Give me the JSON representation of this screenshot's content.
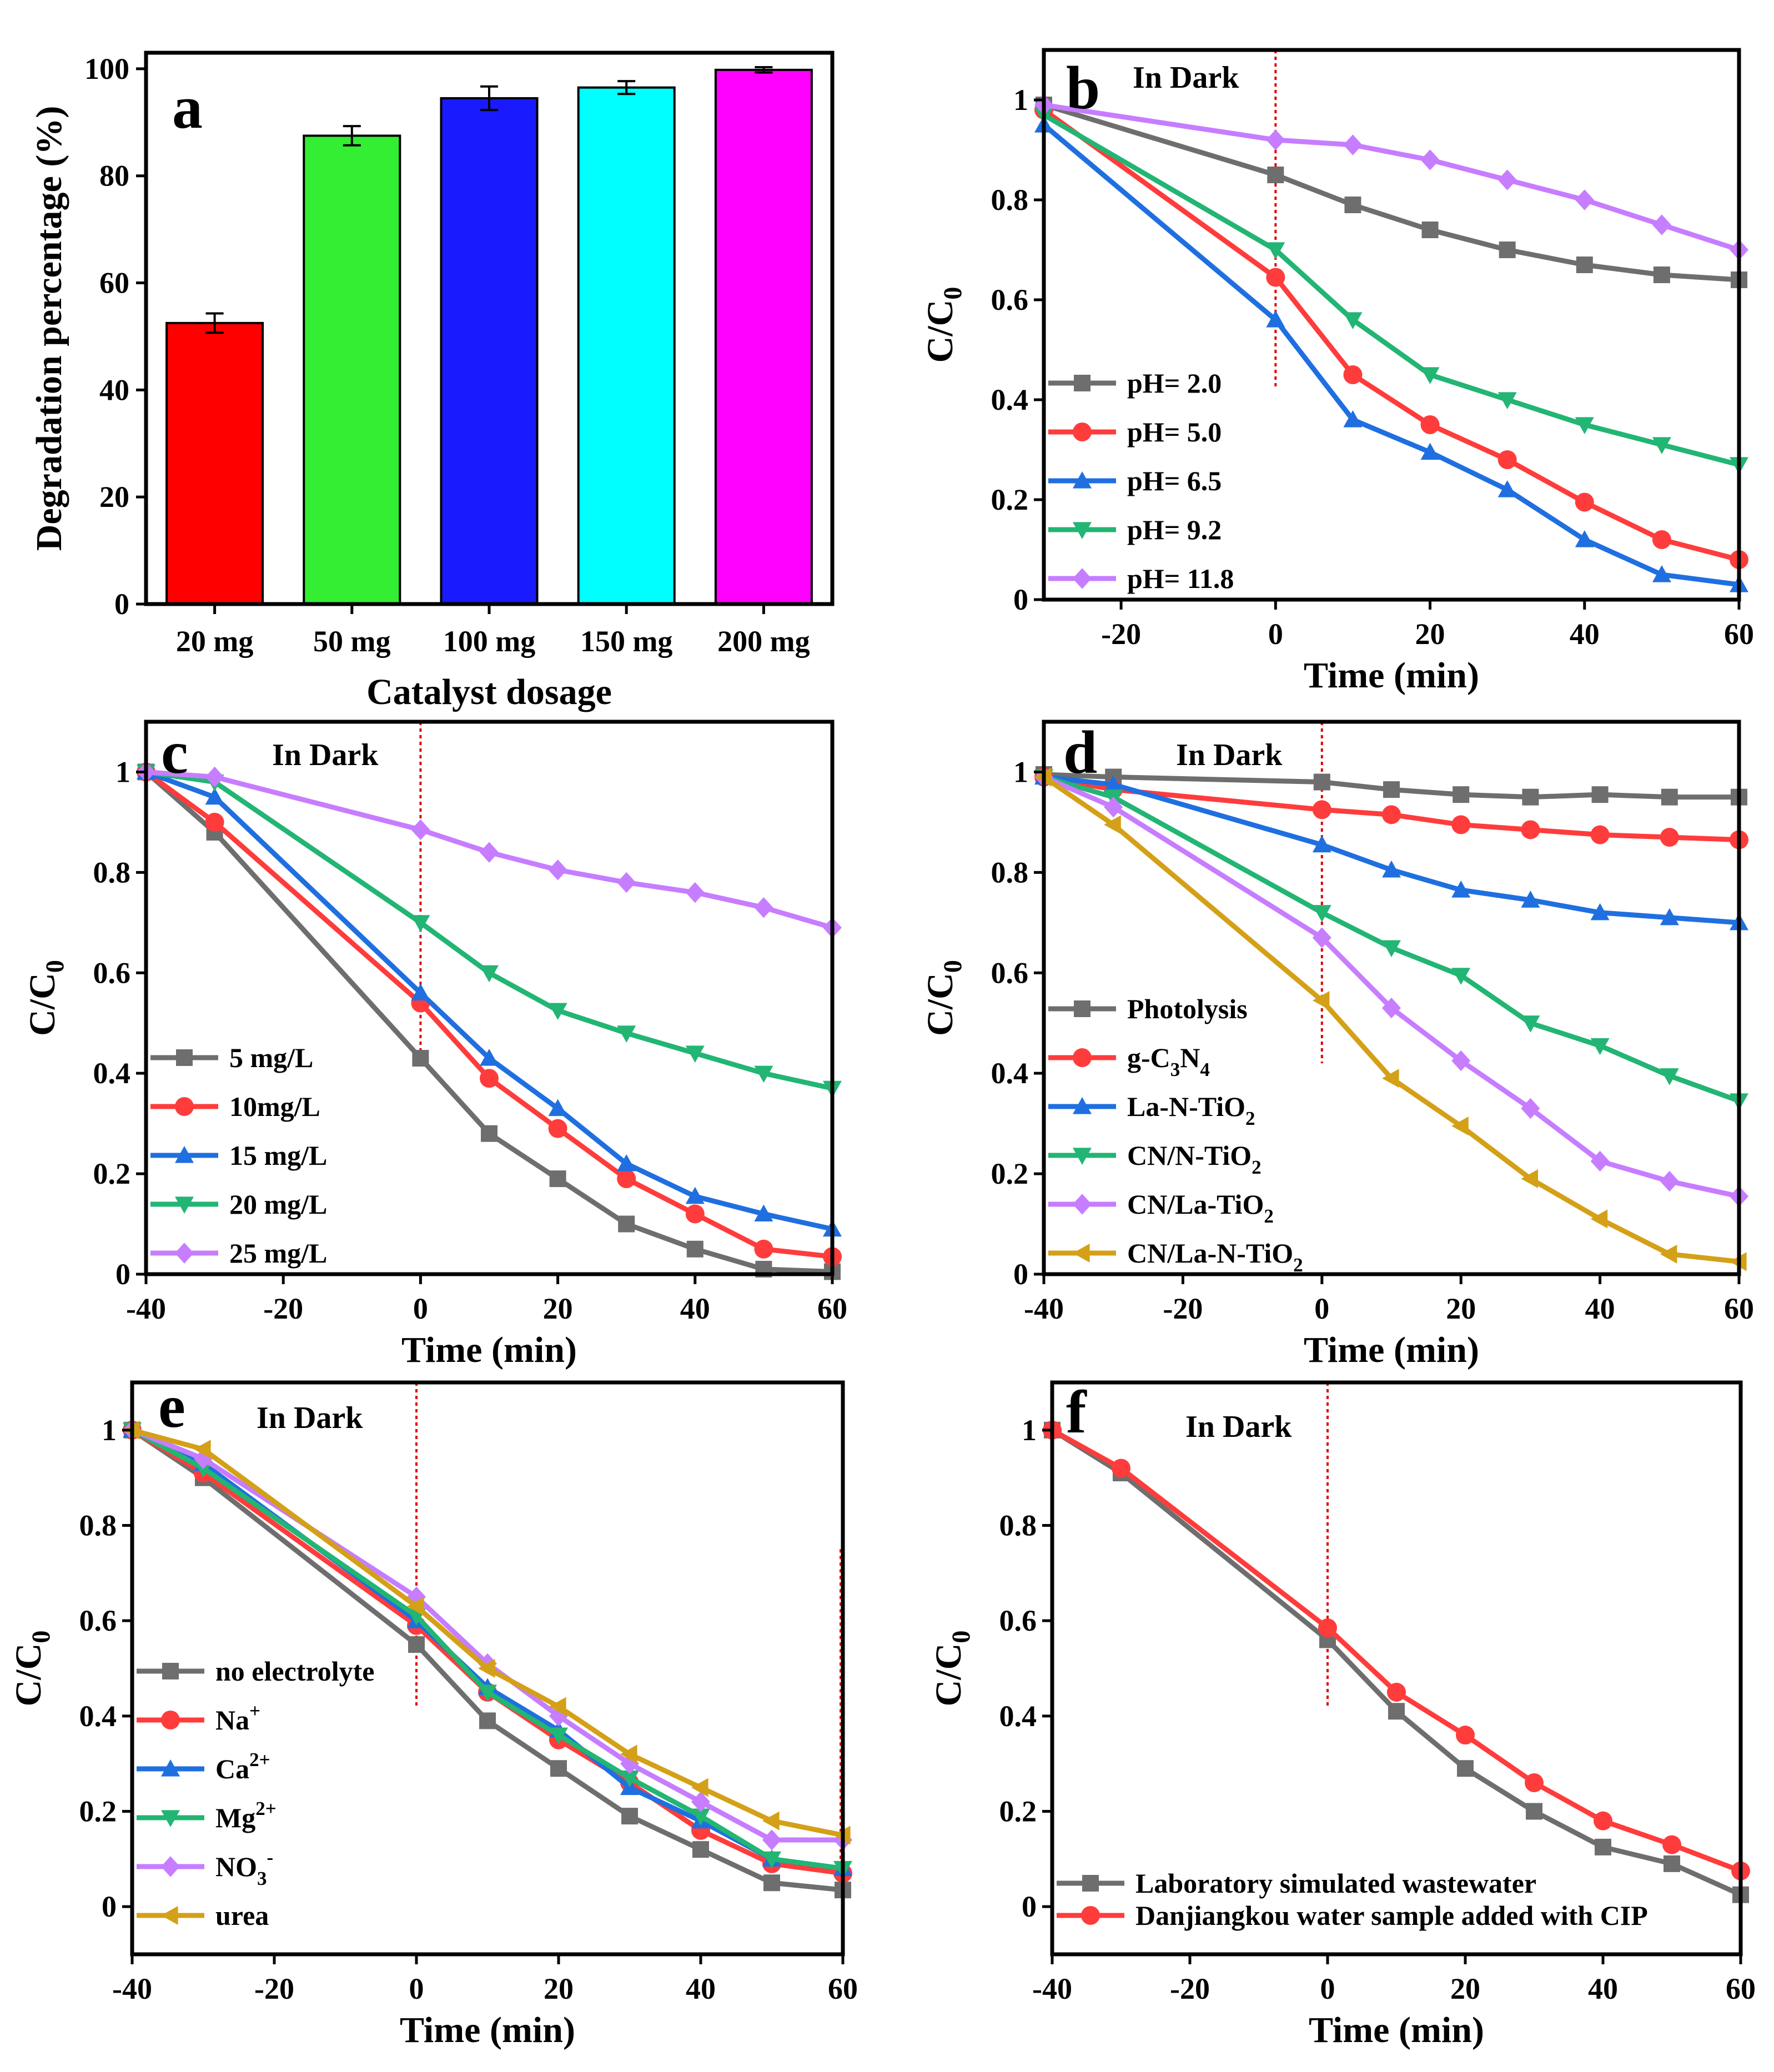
{
  "chart_data": [
    {
      "panel": "a",
      "type": "bar",
      "categories": [
        "20 mg",
        "50 mg",
        "100 mg",
        "150 mg",
        "200 mg"
      ],
      "values": [
        52.5,
        87.5,
        94.5,
        96.5,
        99.8
      ],
      "errors": [
        1.8,
        1.8,
        2.2,
        1.2,
        0.5
      ],
      "colors": [
        "#ff0000",
        "#33ee33",
        "#1a1aff",
        "#00ffff",
        "#ff00ff"
      ],
      "xlabel": "Catalyst dosage",
      "ylabel": "Degradation percentage (%)",
      "ylim": [
        0,
        103
      ],
      "yticks": [
        0,
        20,
        40,
        60,
        80,
        100
      ]
    },
    {
      "panel": "b",
      "type": "line",
      "dark_label": "In Dark",
      "xlabel": "Time (min)",
      "ylabel": "C/C0",
      "xlim": [
        -30,
        60
      ],
      "ylim": [
        0,
        1.1
      ],
      "xticks": [
        -20,
        0,
        20,
        40,
        60
      ],
      "yticks": [
        0.0,
        0.2,
        0.4,
        0.6,
        0.8,
        1.0
      ],
      "dark_line_x": 0,
      "x": [
        -30,
        0,
        10,
        20,
        30,
        40,
        50,
        60
      ],
      "legend_position": "bottom-left",
      "series": [
        {
          "name": "pH= 2.0",
          "marker": "square",
          "color": "#6e6e6e",
          "values": [
            0.99,
            0.85,
            0.79,
            0.74,
            0.7,
            0.67,
            0.65,
            0.64
          ]
        },
        {
          "name": "pH= 5.0",
          "marker": "circle",
          "color": "#ff3c3c",
          "values": [
            0.98,
            0.645,
            0.45,
            0.35,
            0.28,
            0.195,
            0.12,
            0.08
          ]
        },
        {
          "name": "pH= 6.5",
          "marker": "triangle-up",
          "color": "#1f6fe0",
          "values": [
            0.95,
            0.56,
            0.36,
            0.295,
            0.22,
            0.12,
            0.05,
            0.03
          ]
        },
        {
          "name": "pH= 9.2",
          "marker": "triangle-down",
          "color": "#22b573",
          "values": [
            0.97,
            0.7,
            0.56,
            0.45,
            0.4,
            0.35,
            0.31,
            0.27
          ]
        },
        {
          "name": "pH= 11.8",
          "marker": "diamond",
          "color": "#c77dff",
          "values": [
            0.99,
            0.92,
            0.91,
            0.88,
            0.84,
            0.8,
            0.75,
            0.7
          ]
        }
      ]
    },
    {
      "panel": "c",
      "type": "line",
      "dark_label": "In Dark",
      "xlabel": "Time (min)",
      "ylabel": "C/C0",
      "xlim": [
        -40,
        60
      ],
      "ylim": [
        0,
        1.1
      ],
      "xticks": [
        -40,
        -20,
        0,
        20,
        40,
        60
      ],
      "yticks": [
        0.0,
        0.2,
        0.4,
        0.6,
        0.8,
        1.0
      ],
      "dark_line_x": 0,
      "x": [
        -40,
        -30,
        0,
        10,
        20,
        30,
        40,
        50,
        60
      ],
      "legend_position": "bottom-left",
      "series": [
        {
          "name": "5 mg/L",
          "marker": "square",
          "color": "#6e6e6e",
          "values": [
            1.0,
            0.88,
            0.43,
            0.28,
            0.19,
            0.1,
            0.05,
            0.01,
            0.005
          ]
        },
        {
          "name": "10mg/L",
          "marker": "circle",
          "color": "#ff3c3c",
          "values": [
            1.0,
            0.9,
            0.54,
            0.39,
            0.29,
            0.19,
            0.12,
            0.05,
            0.035
          ]
        },
        {
          "name": "15 mg/L",
          "marker": "triangle-up",
          "color": "#1f6fe0",
          "values": [
            1.0,
            0.95,
            0.56,
            0.43,
            0.33,
            0.22,
            0.155,
            0.12,
            0.09
          ]
        },
        {
          "name": "20 mg/L",
          "marker": "triangle-down",
          "color": "#22b573",
          "values": [
            1.0,
            0.98,
            0.7,
            0.6,
            0.525,
            0.48,
            0.44,
            0.4,
            0.37
          ]
        },
        {
          "name": "25 mg/L",
          "marker": "diamond",
          "color": "#c77dff",
          "values": [
            1.0,
            0.99,
            0.885,
            0.84,
            0.805,
            0.78,
            0.76,
            0.73,
            0.69
          ]
        }
      ]
    },
    {
      "panel": "d",
      "type": "line",
      "dark_label": "In Dark",
      "xlabel": "Time (min)",
      "ylabel": "C/C0",
      "xlim": [
        -40,
        60
      ],
      "ylim": [
        0,
        1.1
      ],
      "xticks": [
        -40,
        -20,
        0,
        20,
        40,
        60
      ],
      "yticks": [
        0.0,
        0.2,
        0.4,
        0.6,
        0.8,
        1.0
      ],
      "dark_line_x": 0,
      "x": [
        -40,
        -30,
        0,
        10,
        20,
        30,
        40,
        50,
        60
      ],
      "legend_position": "bottom-left",
      "series": [
        {
          "name": "Photolysis",
          "marker": "square",
          "color": "#6e6e6e",
          "values": [
            0.995,
            0.99,
            0.98,
            0.965,
            0.955,
            0.95,
            0.955,
            0.95,
            0.95
          ]
        },
        {
          "name": "g-C3N4",
          "marker": "circle",
          "color": "#ff3c3c",
          "values": [
            0.99,
            0.965,
            0.925,
            0.915,
            0.895,
            0.885,
            0.875,
            0.87,
            0.865
          ]
        },
        {
          "name": "La-N-TiO2",
          "marker": "triangle-up",
          "color": "#1f6fe0",
          "values": [
            0.99,
            0.975,
            0.855,
            0.805,
            0.765,
            0.745,
            0.72,
            0.71,
            0.7
          ]
        },
        {
          "name": "CN/N-TiO2",
          "marker": "triangle-down",
          "color": "#22b573",
          "values": [
            0.99,
            0.95,
            0.72,
            0.65,
            0.595,
            0.5,
            0.455,
            0.395,
            0.345
          ]
        },
        {
          "name": "CN/La-TiO2",
          "marker": "diamond",
          "color": "#c77dff",
          "values": [
            0.99,
            0.93,
            0.67,
            0.53,
            0.425,
            0.33,
            0.225,
            0.185,
            0.155
          ]
        },
        {
          "name": "CN/La-N-TiO2",
          "marker": "triangle-left",
          "color": "#d4a017",
          "values": [
            0.99,
            0.895,
            0.545,
            0.39,
            0.295,
            0.19,
            0.11,
            0.04,
            0.025
          ]
        }
      ]
    },
    {
      "panel": "e",
      "type": "line",
      "dark_label": "In Dark",
      "xlabel": "Time (min)",
      "ylabel": "C/C0",
      "xlim": [
        -40,
        60
      ],
      "ylim": [
        -0.1,
        1.1
      ],
      "xticks": [
        -40,
        -20,
        0,
        20,
        40,
        60
      ],
      "yticks": [
        0.0,
        0.2,
        0.4,
        0.6,
        0.8,
        1.0
      ],
      "dark_line_x": 0,
      "extra_line_x": 60,
      "x": [
        -40,
        -30,
        0,
        10,
        20,
        30,
        40,
        50,
        60
      ],
      "legend_position": "bottom-left",
      "series": [
        {
          "name": "no electrolyte",
          "marker": "square",
          "color": "#6e6e6e",
          "values": [
            1.0,
            0.9,
            0.55,
            0.39,
            0.29,
            0.19,
            0.12,
            0.05,
            0.035
          ]
        },
        {
          "name": "Na+",
          "marker": "circle",
          "color": "#ff3c3c",
          "values": [
            1.0,
            0.91,
            0.59,
            0.45,
            0.35,
            0.26,
            0.16,
            0.09,
            0.07
          ]
        },
        {
          "name": "Ca2+",
          "marker": "triangle-up",
          "color": "#1f6fe0",
          "values": [
            1.0,
            0.93,
            0.6,
            0.46,
            0.37,
            0.25,
            0.18,
            0.1,
            0.08
          ]
        },
        {
          "name": "Mg2+",
          "marker": "triangle-down",
          "color": "#22b573",
          "values": [
            1.0,
            0.92,
            0.61,
            0.45,
            0.36,
            0.27,
            0.19,
            0.1,
            0.08
          ]
        },
        {
          "name": "NO3-",
          "marker": "diamond",
          "color": "#c77dff",
          "values": [
            1.0,
            0.94,
            0.65,
            0.51,
            0.4,
            0.3,
            0.22,
            0.14,
            0.14
          ]
        },
        {
          "name": "urea",
          "marker": "triangle-left",
          "color": "#d4a017",
          "values": [
            1.0,
            0.96,
            0.63,
            0.5,
            0.42,
            0.32,
            0.25,
            0.18,
            0.15
          ]
        }
      ]
    },
    {
      "panel": "f",
      "type": "line",
      "dark_label": "In Dark",
      "xlabel": "Time (min)",
      "ylabel": "C/C0",
      "xlim": [
        -40,
        60
      ],
      "ylim": [
        -0.1,
        1.1
      ],
      "xticks": [
        -40,
        -20,
        0,
        20,
        40,
        60
      ],
      "yticks": [
        0.0,
        0.2,
        0.4,
        0.6,
        0.8,
        1.0
      ],
      "dark_line_x": 0,
      "x": [
        -40,
        -30,
        0,
        10,
        20,
        30,
        40,
        50,
        60
      ],
      "legend_position": "bottom-left",
      "series": [
        {
          "name": "Laboratory simulated wastewater",
          "marker": "square",
          "color": "#6e6e6e",
          "values": [
            1.0,
            0.91,
            0.56,
            0.41,
            0.29,
            0.2,
            0.125,
            0.09,
            0.025
          ]
        },
        {
          "name": "Danjiangkou water sample added with CIP",
          "marker": "circle",
          "color": "#ff3c3c",
          "values": [
            1.0,
            0.92,
            0.585,
            0.45,
            0.36,
            0.26,
            0.18,
            0.13,
            0.075
          ]
        }
      ]
    }
  ]
}
